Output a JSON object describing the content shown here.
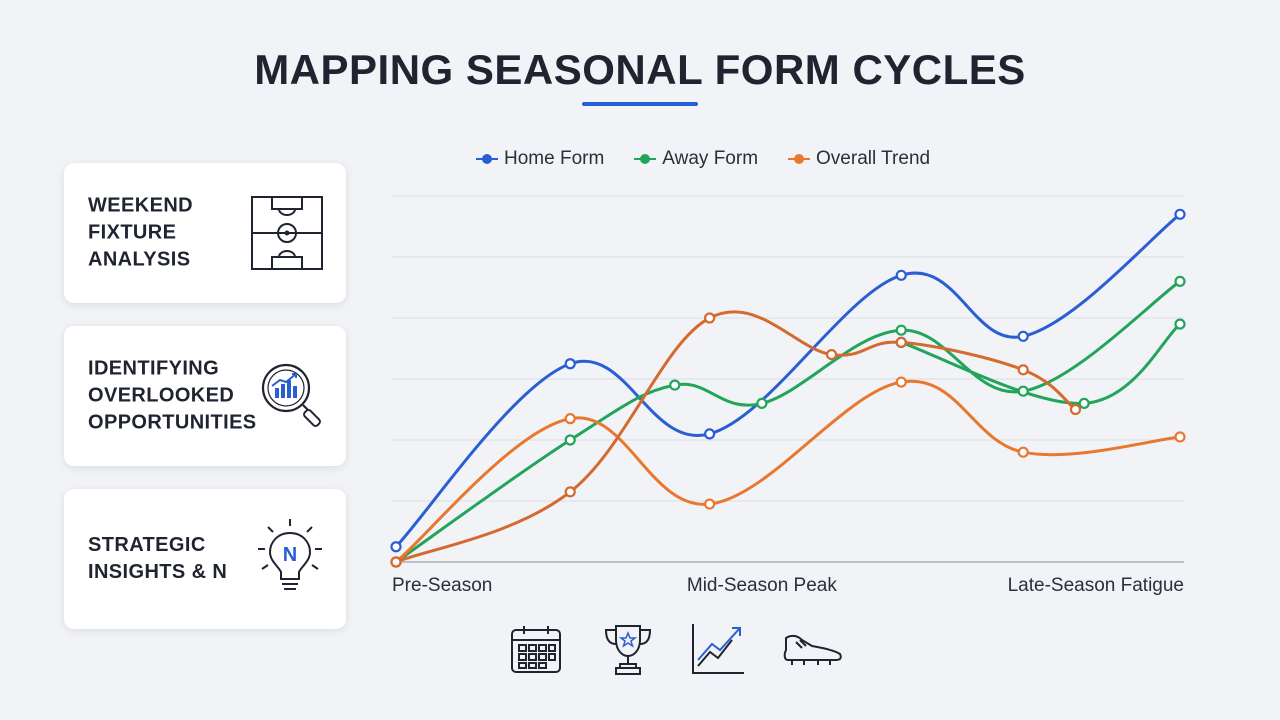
{
  "title": "MAPPING SEASONAL FORM CYCLES",
  "cards": [
    {
      "label": "WEEKEND\nFIXTURE\nANALYSIS",
      "icon": "football-pitch-icon"
    },
    {
      "label": "IDENTIFYING\nOVERLOOKED\nOPPORTUNITIES",
      "icon": "magnifier-chart-icon"
    },
    {
      "label": "STRATEGIC\nINSIGHTS & N",
      "icon": "lightbulb-icon"
    }
  ],
  "bottom_icons": [
    "calendar-icon",
    "trophy-icon",
    "trend-chart-icon",
    "football-boot-icon"
  ],
  "colors": {
    "home": "#2a5fd4",
    "away": "#22a55a",
    "overall": "#e8782f",
    "overall_alt": "#d46a2e"
  },
  "chart_data": {
    "type": "line",
    "title": "",
    "xlabel": "",
    "ylabel": "",
    "x_labels": [
      {
        "text": "Pre-Season",
        "at": 0
      },
      {
        "text": "Mid-Season Peak",
        "at": 4.2
      },
      {
        "text": "Late-Season Fatigue",
        "at": 9
      }
    ],
    "x_range": [
      0,
      9
    ],
    "ylim": [
      0,
      6
    ],
    "grid": true,
    "legend_position": "top",
    "series": [
      {
        "name": "Home Form",
        "color": "#2a5fd4",
        "points": [
          [
            0,
            0.25
          ],
          [
            2,
            3.25
          ],
          [
            3.6,
            2.1
          ],
          [
            5.8,
            4.7
          ],
          [
            7.2,
            3.7
          ],
          [
            9,
            5.7
          ]
        ]
      },
      {
        "name": "Away Form",
        "color": "#22a55a",
        "points": [
          [
            0,
            0
          ],
          [
            2,
            2.0
          ],
          [
            3.2,
            2.9
          ],
          [
            4.2,
            2.6
          ],
          [
            5.8,
            3.8
          ],
          [
            7.2,
            2.8
          ],
          [
            9,
            4.6
          ]
        ]
      },
      {
        "name": "Away Form",
        "color": "#22a55a",
        "legend": false,
        "points": [
          [
            5.8,
            3.6
          ],
          [
            7.9,
            2.6
          ],
          [
            9,
            3.9
          ]
        ]
      },
      {
        "name": "Overall Trend",
        "color": "#e8782f",
        "points": [
          [
            0,
            0
          ],
          [
            2,
            2.35
          ],
          [
            3.6,
            0.95
          ],
          [
            5.8,
            2.95
          ],
          [
            7.2,
            1.8
          ],
          [
            9,
            2.05
          ]
        ]
      },
      {
        "name": "Overall Trend",
        "color": "#d46a2e",
        "legend": false,
        "points": [
          [
            0,
            0
          ],
          [
            2,
            1.15
          ],
          [
            3.6,
            4.0
          ],
          [
            5,
            3.4
          ],
          [
            5.8,
            3.6
          ],
          [
            7.2,
            3.15
          ],
          [
            7.8,
            2.5
          ]
        ]
      }
    ]
  }
}
